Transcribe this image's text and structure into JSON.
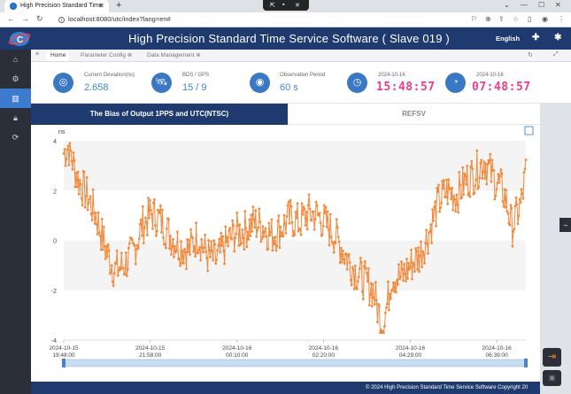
{
  "browser": {
    "tab_title": "High Precision Standard Time",
    "url": "localhost:8080/utc/index?lang=en#"
  },
  "header": {
    "title": "High Precision Standard Time Service Software  ( Slave 019 )",
    "language": "English"
  },
  "page_tabs": [
    {
      "label": "Home"
    },
    {
      "label": "Parameter Config"
    },
    {
      "label": "Data Management"
    }
  ],
  "stats": {
    "current_deviation": {
      "label": "Current Deviation(ns)",
      "value": "2.658"
    },
    "bds_gps": {
      "label": "BDS / GPS",
      "value": "15 / 9"
    },
    "observation_period": {
      "label": "Observation Period",
      "value": "60 s"
    },
    "clock1": {
      "date": "2024-10-16",
      "time": "15:48:57"
    },
    "clock2": {
      "date": "2024-10-16",
      "time": "07:48:57"
    }
  },
  "chart_tabs": {
    "active": "The Bias of Output 1PPS and UTC(NTSC)",
    "other": "REFSV"
  },
  "footer": {
    "text": "© 2024 High Precision Standard Time Service Software Copyright 20"
  },
  "colors": {
    "header_bg": "#1e3a6e",
    "series": "#f28a3e",
    "accent": "#3e86d9",
    "clock_digits": "#e83e8c"
  },
  "chart_data": {
    "type": "line",
    "ylabel": "ns",
    "ylim": [
      -4,
      4
    ],
    "yticks": [
      4,
      2,
      0,
      -2,
      -4
    ],
    "x_tick_labels": [
      [
        "2024-10-15",
        "19:48:00"
      ],
      [
        "2024-10-15",
        "21:58:00"
      ],
      [
        "2024-10-16",
        "00:10:00"
      ],
      [
        "2024-10-16",
        "02:20:00"
      ],
      [
        "2024-10-16",
        "04:29:00"
      ],
      [
        "2024-10-16",
        "06:39:00"
      ]
    ],
    "grid": "bands",
    "anchors": [
      [
        0,
        3.5
      ],
      [
        0.01,
        3.8
      ],
      [
        0.03,
        2.5
      ],
      [
        0.05,
        1.8
      ],
      [
        0.07,
        1.0
      ],
      [
        0.09,
        -0.3
      ],
      [
        0.11,
        -1.2
      ],
      [
        0.13,
        -1.0
      ],
      [
        0.15,
        -0.5
      ],
      [
        0.17,
        0.6
      ],
      [
        0.19,
        1.1
      ],
      [
        0.21,
        0.8
      ],
      [
        0.23,
        0.2
      ],
      [
        0.25,
        -0.2
      ],
      [
        0.27,
        -0.4
      ],
      [
        0.29,
        0.2
      ],
      [
        0.31,
        -0.6
      ],
      [
        0.33,
        -0.8
      ],
      [
        0.35,
        -0.2
      ],
      [
        0.37,
        0.3
      ],
      [
        0.39,
        0.4
      ],
      [
        0.41,
        0.7
      ],
      [
        0.43,
        0.6
      ],
      [
        0.45,
        0.2
      ],
      [
        0.47,
        0.5
      ],
      [
        0.49,
        0.9
      ],
      [
        0.51,
        0.7
      ],
      [
        0.53,
        1.1
      ],
      [
        0.55,
        1.0
      ],
      [
        0.57,
        0.6
      ],
      [
        0.59,
        0.1
      ],
      [
        0.61,
        -0.6
      ],
      [
        0.63,
        -1.2
      ],
      [
        0.65,
        -1.6
      ],
      [
        0.67,
        -2.0
      ],
      [
        0.68,
        -2.8
      ],
      [
        0.69,
        -3.4
      ],
      [
        0.7,
        -2.6
      ],
      [
        0.71,
        -1.4
      ],
      [
        0.73,
        -1.5
      ],
      [
        0.75,
        -1.0
      ],
      [
        0.77,
        -0.6
      ],
      [
        0.79,
        0.3
      ],
      [
        0.81,
        1.5
      ],
      [
        0.83,
        2.0
      ],
      [
        0.85,
        1.8
      ],
      [
        0.87,
        2.4
      ],
      [
        0.89,
        2.7
      ],
      [
        0.91,
        3.2
      ],
      [
        0.93,
        2.5
      ],
      [
        0.95,
        2.0
      ],
      [
        0.96,
        1.4
      ],
      [
        0.97,
        0.5
      ],
      [
        0.98,
        1.0
      ],
      [
        0.99,
        1.5
      ],
      [
        1.0,
        2.7
      ]
    ]
  }
}
